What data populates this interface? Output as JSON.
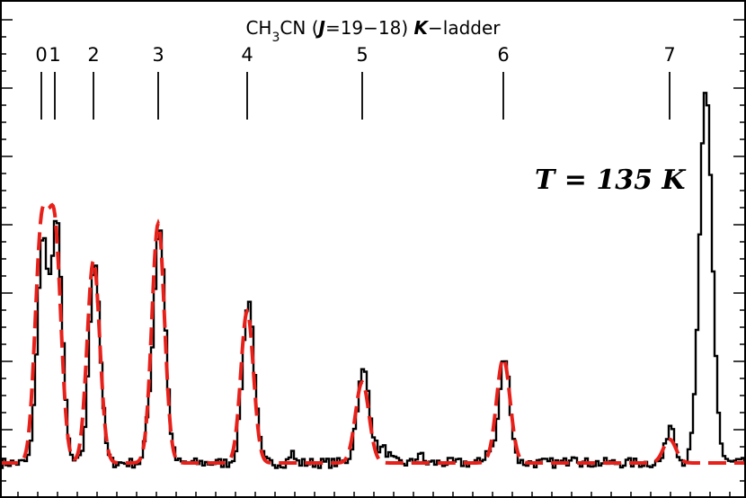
{
  "chart_data": {
    "type": "line",
    "title": "CH3CN (J=19−18) K−ladder",
    "title_parts": {
      "mol_a": "CH",
      "mol_sub": "3",
      "mol_b": "CN (",
      "j_italic": "J",
      "trans": "=19−18) ",
      "k_italic": "K",
      "rest": "−ladder"
    },
    "annotation": "T = 135 K",
    "xlabel": "",
    "ylabel": "",
    "xlim": [
      0,
      830
    ],
    "ylim": [
      -0.05,
      1.0
    ],
    "grid": false,
    "k_labels": [
      {
        "label": "0",
        "x": 46
      },
      {
        "label": "1",
        "x": 61
      },
      {
        "label": "2",
        "x": 104
      },
      {
        "label": "3",
        "x": 176
      },
      {
        "label": "4",
        "x": 275
      },
      {
        "label": "5",
        "x": 403
      },
      {
        "label": "6",
        "x": 560
      },
      {
        "label": "7",
        "x": 745
      }
    ],
    "series": [
      {
        "role": "observed",
        "color": "#000000",
        "baseline": 0.0,
        "peaks": [
          {
            "x": 46,
            "h": 0.65,
            "w": 6
          },
          {
            "x": 62,
            "h": 0.7,
            "w": 6
          },
          {
            "x": 104,
            "h": 0.6,
            "w": 6
          },
          {
            "x": 176,
            "h": 0.7,
            "w": 6.5
          },
          {
            "x": 275,
            "h": 0.485,
            "w": 6.5
          },
          {
            "x": 403,
            "h": 0.275,
            "w": 7
          },
          {
            "x": 560,
            "h": 0.31,
            "w": 6
          },
          {
            "x": 745,
            "h": 0.115,
            "w": 5
          },
          {
            "x": 784,
            "h": 1.1,
            "w": 7
          },
          {
            "x": 163,
            "h": 0.07,
            "w": 3
          },
          {
            "x": 323,
            "h": 0.03,
            "w": 3
          },
          {
            "x": 425,
            "h": 0.04,
            "w": 6
          },
          {
            "x": 465,
            "h": 0.03,
            "w": 3
          },
          {
            "x": 542,
            "h": 0.04,
            "w": 4
          },
          {
            "x": 637,
            "h": 0.03,
            "w": 4
          }
        ]
      },
      {
        "role": "model",
        "color": "#e8201a",
        "baseline": 0.0,
        "peaks": [
          {
            "x": 46,
            "h": 0.67,
            "w": 7
          },
          {
            "x": 61,
            "h": 0.67,
            "w": 7
          },
          {
            "x": 104,
            "h": 0.6,
            "w": 7
          },
          {
            "x": 176,
            "h": 0.71,
            "w": 7
          },
          {
            "x": 275,
            "h": 0.45,
            "w": 7
          },
          {
            "x": 403,
            "h": 0.24,
            "w": 7.5
          },
          {
            "x": 560,
            "h": 0.31,
            "w": 7.5
          },
          {
            "x": 745,
            "h": 0.07,
            "w": 7
          }
        ]
      }
    ]
  },
  "colors": {
    "observed": "#000000",
    "model": "#e8201a",
    "background": "#ffffff"
  }
}
